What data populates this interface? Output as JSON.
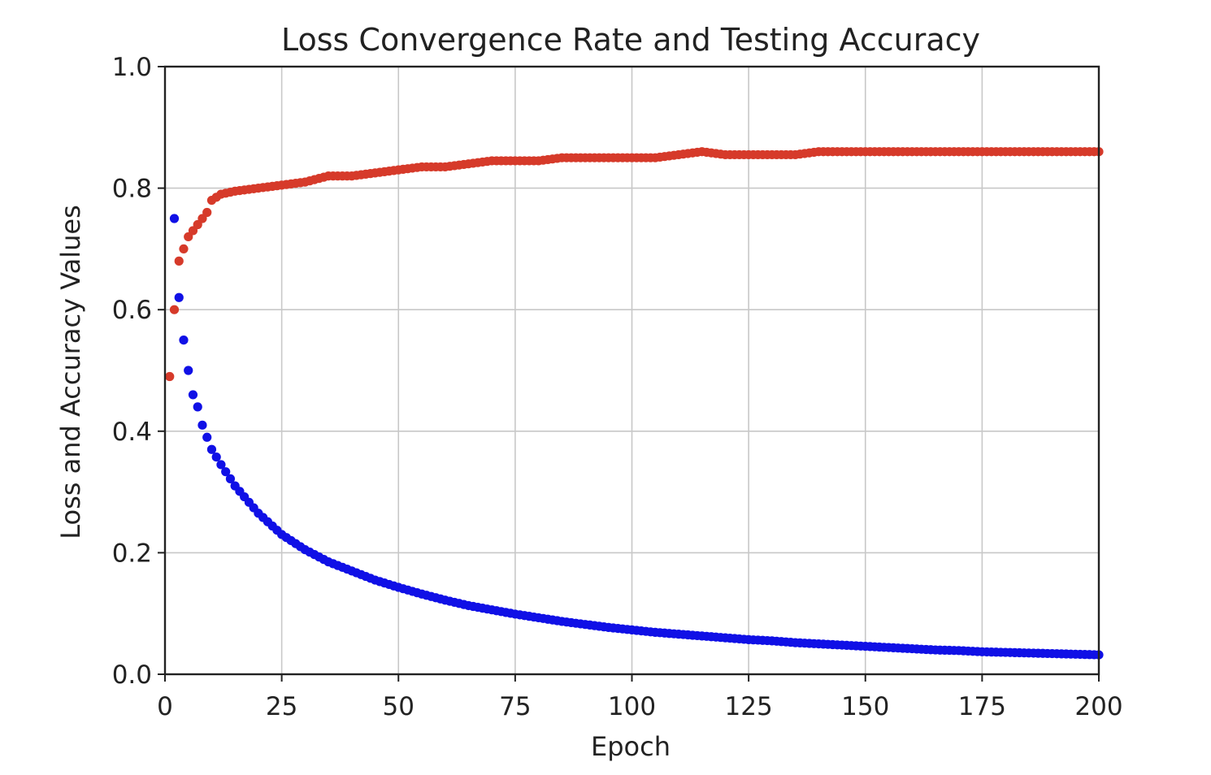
{
  "chart_data": {
    "type": "scatter",
    "title": "Loss Convergence Rate and Testing Accuracy",
    "xlabel": "Epoch",
    "ylabel": "Loss and Accuracy Values",
    "xlim": [
      0,
      200
    ],
    "ylim": [
      0.0,
      1.0
    ],
    "xticks": [
      "0",
      "25",
      "50",
      "75",
      "100",
      "125",
      "150",
      "175",
      "200"
    ],
    "yticks": [
      "0.0",
      "0.2",
      "0.4",
      "0.6",
      "0.8",
      "1.0"
    ],
    "grid": true,
    "legend": "none",
    "series": [
      {
        "color": "#d63a2a",
        "x": [
          1,
          2,
          3,
          4,
          5,
          6,
          7,
          8,
          9,
          10,
          12,
          15,
          20,
          25,
          30,
          35,
          40,
          45,
          50,
          55,
          60,
          65,
          70,
          75,
          80,
          85,
          90,
          95,
          100,
          105,
          110,
          115,
          120,
          125,
          130,
          135,
          140,
          145,
          150,
          155,
          160,
          165,
          170,
          175,
          180,
          185,
          190,
          195,
          200
        ],
        "y": [
          0.49,
          0.6,
          0.68,
          0.7,
          0.72,
          0.73,
          0.74,
          0.75,
          0.76,
          0.78,
          0.79,
          0.795,
          0.8,
          0.805,
          0.81,
          0.82,
          0.82,
          0.825,
          0.83,
          0.835,
          0.835,
          0.84,
          0.845,
          0.845,
          0.845,
          0.85,
          0.85,
          0.85,
          0.85,
          0.85,
          0.855,
          0.86,
          0.855,
          0.855,
          0.855,
          0.855,
          0.86,
          0.86,
          0.86,
          0.86,
          0.86,
          0.86,
          0.86,
          0.86,
          0.86,
          0.86,
          0.86,
          0.86,
          0.86
        ]
      },
      {
        "color": "#1010e6",
        "x": [
          2,
          3,
          4,
          5,
          6,
          7,
          8,
          9,
          10,
          12,
          15,
          20,
          25,
          30,
          35,
          40,
          45,
          50,
          55,
          60,
          65,
          70,
          75,
          80,
          85,
          90,
          95,
          100,
          105,
          110,
          115,
          120,
          125,
          130,
          135,
          140,
          145,
          150,
          155,
          160,
          165,
          170,
          175,
          180,
          185,
          190,
          195,
          200
        ],
        "y": [
          0.75,
          0.62,
          0.55,
          0.5,
          0.46,
          0.44,
          0.41,
          0.39,
          0.37,
          0.345,
          0.31,
          0.265,
          0.23,
          0.205,
          0.185,
          0.17,
          0.155,
          0.143,
          0.132,
          0.122,
          0.113,
          0.106,
          0.099,
          0.093,
          0.087,
          0.082,
          0.077,
          0.073,
          0.069,
          0.066,
          0.063,
          0.06,
          0.057,
          0.055,
          0.052,
          0.05,
          0.048,
          0.046,
          0.044,
          0.042,
          0.04,
          0.039,
          0.037,
          0.036,
          0.035,
          0.034,
          0.033,
          0.032
        ]
      }
    ]
  }
}
